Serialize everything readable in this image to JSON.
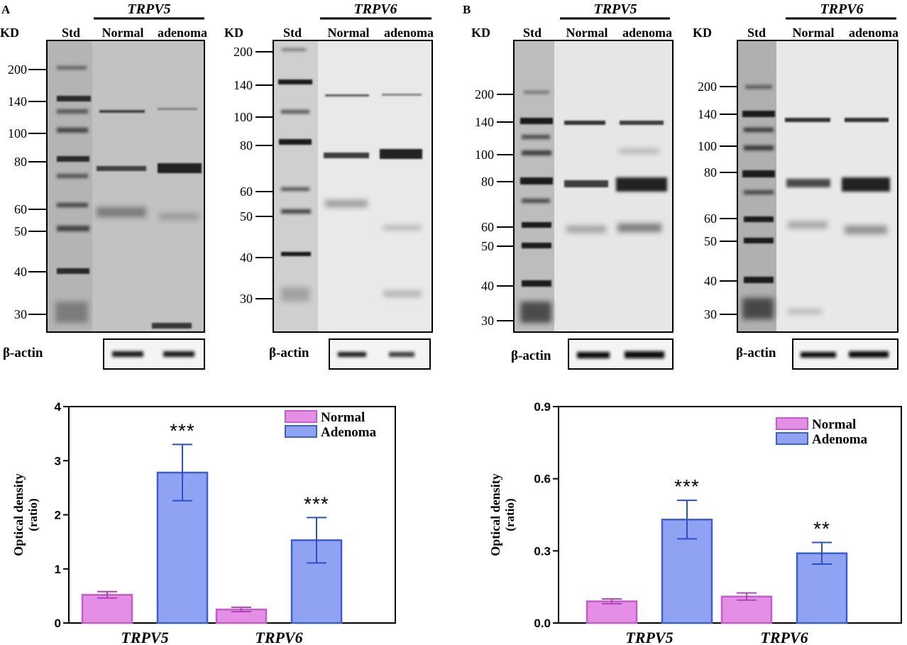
{
  "panels": [
    {
      "letter": "A",
      "blots": [
        {
          "gene": "TRPV5",
          "kd_label": "KD",
          "std_label": "Std",
          "lane_labels": [
            "Normal",
            "adenoma"
          ],
          "markers": [
            "200",
            "140",
            "100",
            "80",
            "60",
            "50",
            "40",
            "30"
          ],
          "loading_label": "β-actin"
        },
        {
          "gene": "TRPV6",
          "kd_label": "KD",
          "std_label": "Std",
          "lane_labels": [
            "Normal",
            "adenoma"
          ],
          "markers": [
            "200",
            "140",
            "100",
            "80",
            "60",
            "50",
            "40",
            "30"
          ],
          "loading_label": "β-actin"
        }
      ]
    },
    {
      "letter": "B",
      "blots": [
        {
          "gene": "TRPV5",
          "kd_label": "KD",
          "std_label": "Std",
          "lane_labels": [
            "Normal",
            "adenoma"
          ],
          "markers": [
            "200",
            "140",
            "100",
            "80",
            "60",
            "50",
            "40",
            "30"
          ],
          "loading_label": "β-actin"
        },
        {
          "gene": "TRPV6",
          "kd_label": "KD",
          "std_label": "Std",
          "lane_labels": [
            "Normal",
            "adenoma"
          ],
          "markers": [
            "200",
            "140",
            "100",
            "80",
            "60",
            "50",
            "40",
            "30"
          ],
          "loading_label": "β-actin"
        }
      ]
    }
  ],
  "colors": {
    "normal": "#e48ee6",
    "normal_edge": "#c45ccc",
    "adenoma": "#8fa3f2",
    "adenoma_edge": "#3a5fd6",
    "error": "#2a4fcf"
  },
  "chart_data": [
    {
      "type": "bar",
      "panel": "A",
      "categories": [
        "TRPV5",
        "TRPV6"
      ],
      "series": [
        {
          "name": "Normal",
          "values": [
            0.52,
            0.25
          ],
          "errors": [
            0.06,
            0.04
          ]
        },
        {
          "name": "Adenoma",
          "values": [
            2.78,
            1.53
          ],
          "errors": [
            0.52,
            0.42
          ]
        }
      ],
      "significance": [
        [
          "",
          ""
        ],
        [
          "***",
          "***"
        ]
      ],
      "ylabel": [
        "Optical density",
        "(ratio)"
      ],
      "ylim": [
        0,
        4
      ],
      "yticks": [
        "0",
        "1",
        "2",
        "3",
        "4"
      ],
      "legend": "top-right"
    },
    {
      "type": "bar",
      "panel": "B",
      "categories": [
        "TRPV5",
        "TRPV6"
      ],
      "series": [
        {
          "name": "Normal",
          "values": [
            0.09,
            0.11
          ],
          "errors": [
            0.01,
            0.015
          ]
        },
        {
          "name": "Adenoma",
          "values": [
            0.43,
            0.29
          ],
          "errors": [
            0.08,
            0.045
          ]
        }
      ],
      "significance": [
        [
          "",
          ""
        ],
        [
          "***",
          "**"
        ]
      ],
      "ylabel": [
        "Optical density",
        "(ratio)"
      ],
      "ylim": [
        0,
        0.9
      ],
      "yticks": [
        "0.0",
        "0.3",
        "0.6",
        "0.9"
      ],
      "legend": "top-right"
    }
  ]
}
